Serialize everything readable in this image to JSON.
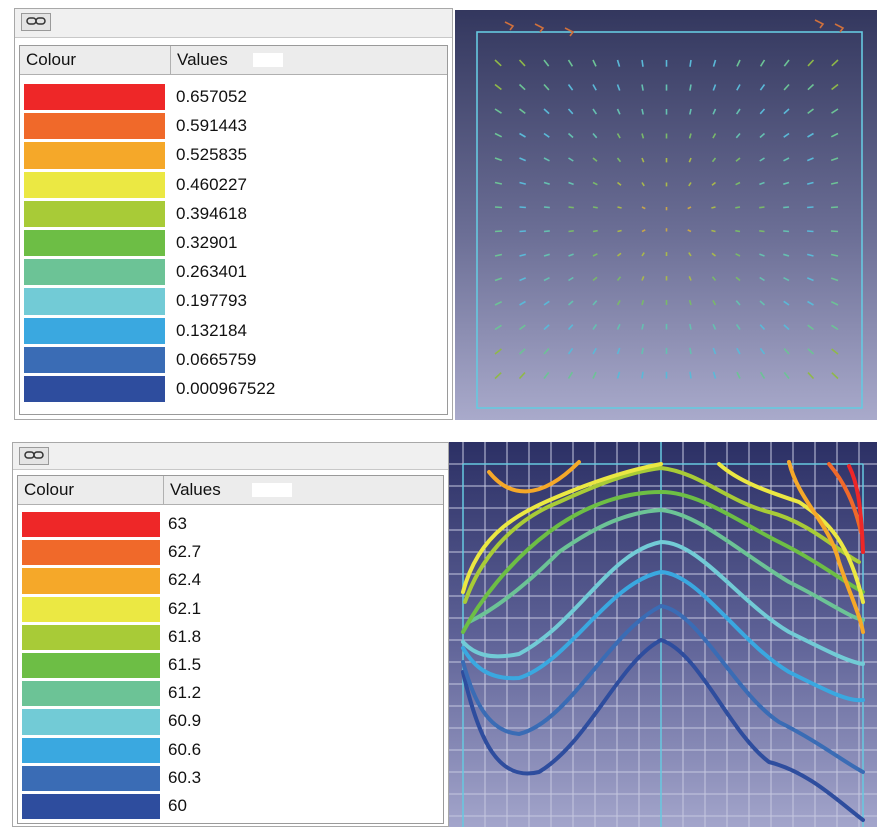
{
  "colors": {
    "red": "#ee2728",
    "orange": "#f0692a",
    "amber": "#f5a829",
    "yellow": "#ebe843",
    "yellow_green": "#a8cb37",
    "green": "#6dbe45",
    "teal_green": "#6cc396",
    "light_cyan": "#72cbd6",
    "sky_blue": "#3aa8e0",
    "mid_blue": "#3a6cb5",
    "dark_blue": "#2e4d9e"
  },
  "top_panel": {
    "link_icon": "chain-link-icon",
    "columns": {
      "colour": "Colour",
      "values": "Values"
    },
    "rows": [
      {
        "color": "#ee2728",
        "value": "0.657052"
      },
      {
        "color": "#f0692a",
        "value": "0.591443"
      },
      {
        "color": "#f5a829",
        "value": "0.525835"
      },
      {
        "color": "#ebe843",
        "value": "0.460227"
      },
      {
        "color": "#a8cb37",
        "value": "0.394618"
      },
      {
        "color": "#6dbe45",
        "value": "0.32901"
      },
      {
        "color": "#6cc396",
        "value": "0.263401"
      },
      {
        "color": "#72cbd6",
        "value": "0.197793"
      },
      {
        "color": "#3aa8e0",
        "value": "0.132184"
      },
      {
        "color": "#3a6cb5",
        "value": "0.0665759"
      },
      {
        "color": "#2e4d9e",
        "value": "0.000967522"
      }
    ]
  },
  "bottom_panel": {
    "link_icon": "chain-link-icon",
    "columns": {
      "colour": "Colour",
      "values": "Values"
    },
    "rows": [
      {
        "color": "#ee2728",
        "value": "63"
      },
      {
        "color": "#f0692a",
        "value": "62.7"
      },
      {
        "color": "#f5a829",
        "value": "62.4"
      },
      {
        "color": "#ebe843",
        "value": "62.1"
      },
      {
        "color": "#a8cb37",
        "value": "61.8"
      },
      {
        "color": "#6dbe45",
        "value": "61.5"
      },
      {
        "color": "#6cc396",
        "value": "61.2"
      },
      {
        "color": "#72cbd6",
        "value": "60.9"
      },
      {
        "color": "#3aa8e0",
        "value": "60.6"
      },
      {
        "color": "#3a6cb5",
        "value": "60.3"
      },
      {
        "color": "#2e4d9e",
        "value": "60"
      }
    ]
  },
  "top_view": {
    "type": "vector-field-plot"
  },
  "bottom_view": {
    "type": "contour-plot"
  }
}
